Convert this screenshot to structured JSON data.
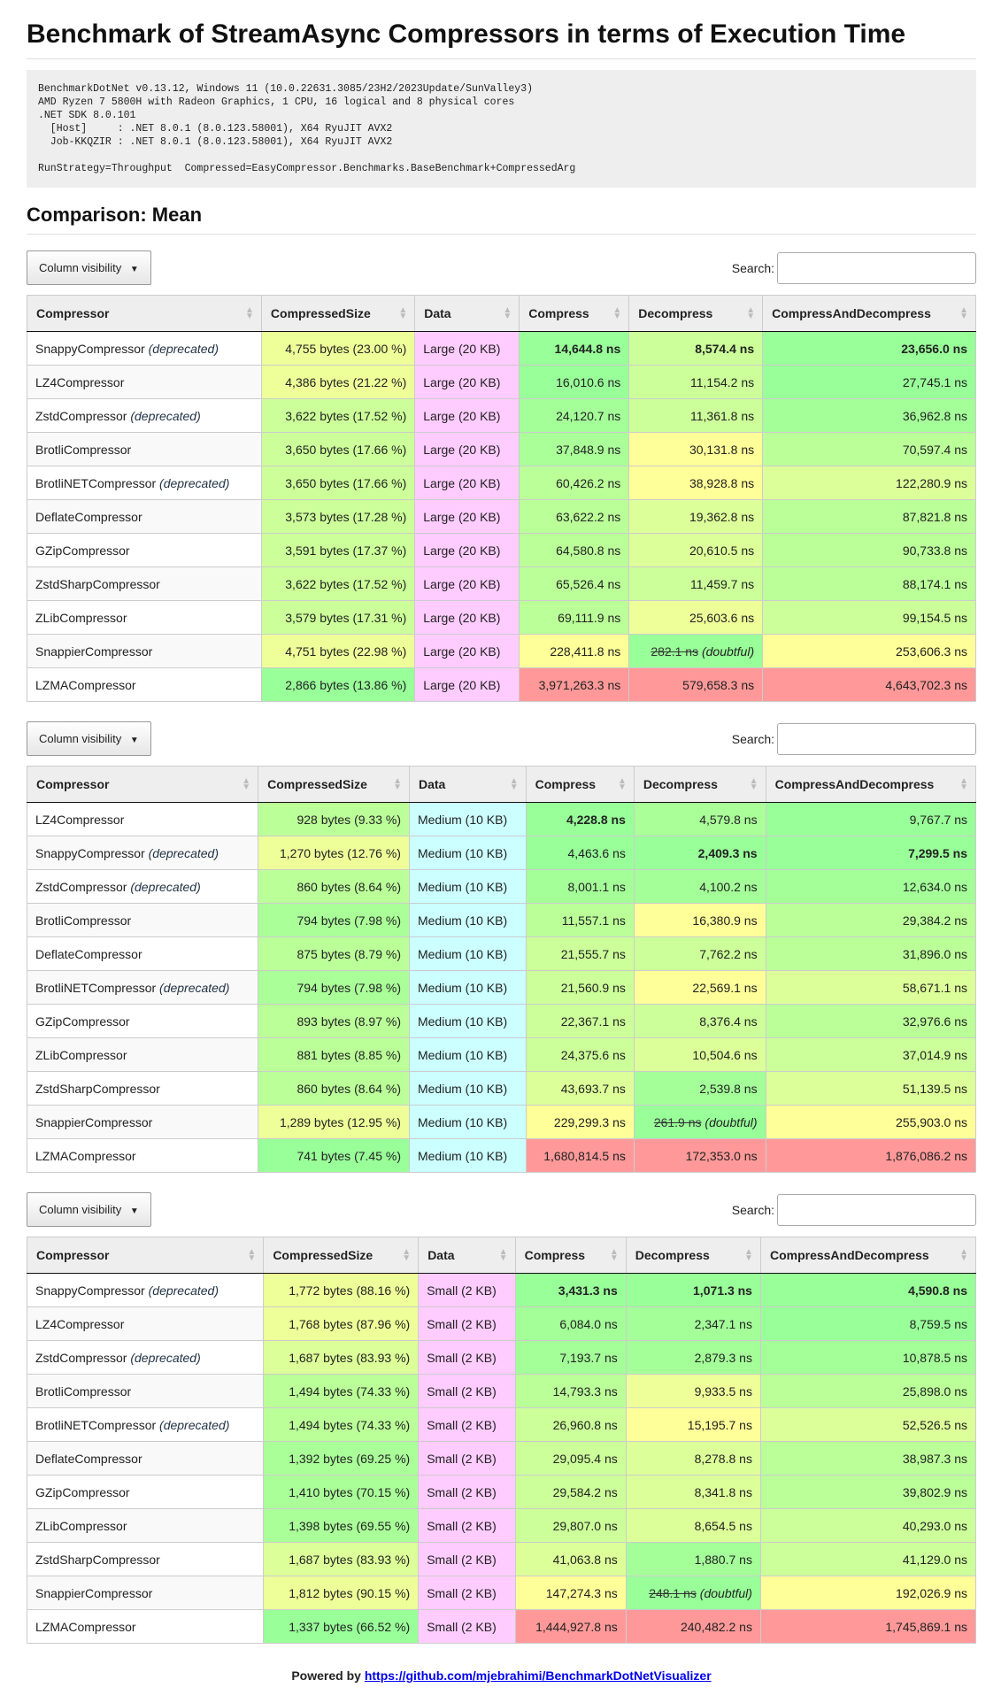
{
  "title": "Benchmark of StreamAsync Compressors in terms of Execution Time",
  "env": "BenchmarkDotNet v0.13.12, Windows 11 (10.0.22631.3085/23H2/2023Update/SunValley3)\nAMD Ryzen 7 5800H with Radeon Graphics, 1 CPU, 16 logical and 8 physical cores\n.NET SDK 8.0.101\n  [Host]     : .NET 8.0.1 (8.0.123.58001), X64 RyuJIT AVX2\n  Job-KKQZIR : .NET 8.0.1 (8.0.123.58001), X64 RyuJIT AVX2\n\nRunStrategy=Throughput  Compressed=EasyCompressor.Benchmarks.BaseBenchmark+CompressedArg",
  "comparison_title": "Comparison: Mean",
  "column_visibility_label": "Column visibility",
  "search_label": "Search:",
  "columns": [
    "Compressor",
    "CompressedSize",
    "Data",
    "Compress",
    "Decompress",
    "CompressAndDecompress"
  ],
  "deprecated_label": "(deprecated)",
  "doubtful_label": "(doubtful)",
  "colors": {
    "green": "#99ff99",
    "yellow": "#ffff99",
    "red": "#ff9999",
    "large": "#ffccff",
    "medium": "#ccffff",
    "small": "#ffccff"
  },
  "tables": [
    {
      "data_color": "#ffccff",
      "bold": [
        0,
        0,
        0
      ],
      "rows": [
        [
          "SnappyCompressor",
          true,
          "4,755 bytes (23.00 %)",
          "Large (20 KB)",
          "14,644.8 ns",
          "8,574.4 ns",
          "23,656.0 ns",
          [
            "#eeff99",
            "#99ff99",
            "#ccff99",
            "#99ff99"
          ],
          false
        ],
        [
          "LZ4Compressor",
          false,
          "4,386 bytes (21.22 %)",
          "Large (20 KB)",
          "16,010.6 ns",
          "11,154.2 ns",
          "27,745.1 ns",
          [
            "#eeff99",
            "#99ff99",
            "#ccff99",
            "#99ff99"
          ],
          false
        ],
        [
          "ZstdCompressor",
          true,
          "3,622 bytes (17.52 %)",
          "Large (20 KB)",
          "24,120.7 ns",
          "11,361.8 ns",
          "36,962.8 ns",
          [
            "#ccff99",
            "#a4ff99",
            "#ccff99",
            "#a4ff99"
          ],
          false
        ],
        [
          "BrotliCompressor",
          false,
          "3,650 bytes (17.66 %)",
          "Large (20 KB)",
          "37,848.9 ns",
          "30,131.8 ns",
          "70,597.4 ns",
          [
            "#ccff99",
            "#aaff99",
            "#ffff99",
            "#bbff99"
          ],
          false
        ],
        [
          "BrotliNETCompressor",
          true,
          "3,650 bytes (17.66 %)",
          "Large (20 KB)",
          "60,426.2 ns",
          "38,928.8 ns",
          "122,280.9 ns",
          [
            "#ccff99",
            "#bbff99",
            "#ffff99",
            "#ddff99"
          ],
          false
        ],
        [
          "DeflateCompressor",
          false,
          "3,573 bytes (17.28 %)",
          "Large (20 KB)",
          "63,622.2 ns",
          "19,362.8 ns",
          "87,821.8 ns",
          [
            "#ccff99",
            "#bbff99",
            "#ddff99",
            "#bbff99"
          ],
          false
        ],
        [
          "GZipCompressor",
          false,
          "3,591 bytes (17.37 %)",
          "Large (20 KB)",
          "64,580.8 ns",
          "20,610.5 ns",
          "90,733.8 ns",
          [
            "#ccff99",
            "#bbff99",
            "#ddff99",
            "#bbff99"
          ],
          false
        ],
        [
          "ZstdSharpCompressor",
          false,
          "3,622 bytes (17.52 %)",
          "Large (20 KB)",
          "65,526.4 ns",
          "11,459.7 ns",
          "88,174.1 ns",
          [
            "#ccff99",
            "#bbff99",
            "#ccff99",
            "#bbff99"
          ],
          false
        ],
        [
          "ZLibCompressor",
          false,
          "3,579 bytes (17.31 %)",
          "Large (20 KB)",
          "69,111.9 ns",
          "25,603.6 ns",
          "99,154.5 ns",
          [
            "#ccff99",
            "#bbff99",
            "#eeff99",
            "#ccff99"
          ],
          false
        ],
        [
          "SnappierCompressor",
          false,
          "4,751 bytes (22.98 %)",
          "Large (20 KB)",
          "228,411.8 ns",
          "282.1 ns",
          "253,606.3 ns",
          [
            "#eeff99",
            "#ffff99",
            "#99ff99",
            "#ffff99"
          ],
          true
        ],
        [
          "LZMACompressor",
          false,
          "2,866 bytes (13.86 %)",
          "Large (20 KB)",
          "3,971,263.3 ns",
          "579,658.3 ns",
          "4,643,702.3 ns",
          [
            "#99ff99",
            "#ff9999",
            "#ff9999",
            "#ff9999"
          ],
          false
        ]
      ]
    },
    {
      "data_color": "#ccffff",
      "bold": [
        0,
        1,
        1
      ],
      "rows": [
        [
          "LZ4Compressor",
          false,
          "928 bytes (9.33 %)",
          "Medium (10 KB)",
          "4,228.8 ns",
          "4,579.8 ns",
          "9,767.7 ns",
          [
            "#bbff99",
            "#99ff99",
            "#aaff99",
            "#99ff99"
          ],
          false
        ],
        [
          "SnappyCompressor",
          true,
          "1,270 bytes (12.76 %)",
          "Medium (10 KB)",
          "4,463.6 ns",
          "2,409.3 ns",
          "7,299.5 ns",
          [
            "#eeff99",
            "#99ff99",
            "#99ff99",
            "#99ff99"
          ],
          false
        ],
        [
          "ZstdCompressor",
          true,
          "860 bytes (8.64 %)",
          "Medium (10 KB)",
          "8,001.1 ns",
          "4,100.2 ns",
          "12,634.0 ns",
          [
            "#bbff99",
            "#a4ff99",
            "#a4ff99",
            "#a4ff99"
          ],
          false
        ],
        [
          "BrotliCompressor",
          false,
          "794 bytes (7.98 %)",
          "Medium (10 KB)",
          "11,557.1 ns",
          "16,380.9 ns",
          "29,384.2 ns",
          [
            "#aaff99",
            "#bbff99",
            "#ffff99",
            "#bbff99"
          ],
          false
        ],
        [
          "DeflateCompressor",
          false,
          "875 bytes (8.79 %)",
          "Medium (10 KB)",
          "21,555.7 ns",
          "7,762.2 ns",
          "31,896.0 ns",
          [
            "#bbff99",
            "#ccff99",
            "#ccff99",
            "#bbff99"
          ],
          false
        ],
        [
          "BrotliNETCompressor",
          true,
          "794 bytes (7.98 %)",
          "Medium (10 KB)",
          "21,560.9 ns",
          "22,569.1 ns",
          "58,671.1 ns",
          [
            "#aaff99",
            "#ccff99",
            "#ffff99",
            "#ddff99"
          ],
          false
        ],
        [
          "GZipCompressor",
          false,
          "893 bytes (8.97 %)",
          "Medium (10 KB)",
          "22,367.1 ns",
          "8,376.4 ns",
          "32,976.6 ns",
          [
            "#bbff99",
            "#ccff99",
            "#ccff99",
            "#bbff99"
          ],
          false
        ],
        [
          "ZLibCompressor",
          false,
          "881 bytes (8.85 %)",
          "Medium (10 KB)",
          "24,375.6 ns",
          "10,504.6 ns",
          "37,014.9 ns",
          [
            "#bbff99",
            "#ccff99",
            "#ddff99",
            "#ccff99"
          ],
          false
        ],
        [
          "ZstdSharpCompressor",
          false,
          "860 bytes (8.64 %)",
          "Medium (10 KB)",
          "43,693.7 ns",
          "2,539.8 ns",
          "51,139.5 ns",
          [
            "#bbff99",
            "#ddff99",
            "#a4ff99",
            "#ddff99"
          ],
          false
        ],
        [
          "SnappierCompressor",
          false,
          "1,289 bytes (12.95 %)",
          "Medium (10 KB)",
          "229,299.3 ns",
          "261.9 ns",
          "255,903.0 ns",
          [
            "#eeff99",
            "#ffff99",
            "#99ff99",
            "#ffff99"
          ],
          true
        ],
        [
          "LZMACompressor",
          false,
          "741 bytes (7.45 %)",
          "Medium (10 KB)",
          "1,680,814.5 ns",
          "172,353.0 ns",
          "1,876,086.2 ns",
          [
            "#99ff99",
            "#ff9999",
            "#ff9999",
            "#ff9999"
          ],
          false
        ]
      ]
    },
    {
      "data_color": "#ffccff",
      "bold": [
        0,
        0,
        0
      ],
      "rows": [
        [
          "SnappyCompressor",
          true,
          "1,772 bytes (88.16 %)",
          "Small (2 KB)",
          "3,431.3 ns",
          "1,071.3 ns",
          "4,590.8 ns",
          [
            "#eeff99",
            "#99ff99",
            "#99ff99",
            "#99ff99"
          ],
          false
        ],
        [
          "LZ4Compressor",
          false,
          "1,768 bytes (87.96 %)",
          "Small (2 KB)",
          "6,084.0 ns",
          "2,347.1 ns",
          "8,759.5 ns",
          [
            "#eeff99",
            "#a4ff99",
            "#a4ff99",
            "#99ff99"
          ],
          false
        ],
        [
          "ZstdCompressor",
          true,
          "1,687 bytes (83.93 %)",
          "Small (2 KB)",
          "7,193.7 ns",
          "2,879.3 ns",
          "10,878.5 ns",
          [
            "#ddff99",
            "#a4ff99",
            "#a4ff99",
            "#a4ff99"
          ],
          false
        ],
        [
          "BrotliCompressor",
          false,
          "1,494 bytes (74.33 %)",
          "Small (2 KB)",
          "14,793.3 ns",
          "9,933.5 ns",
          "25,898.0 ns",
          [
            "#bbff99",
            "#bbff99",
            "#eeff99",
            "#bbff99"
          ],
          false
        ],
        [
          "BrotliNETCompressor",
          true,
          "1,494 bytes (74.33 %)",
          "Small (2 KB)",
          "26,960.8 ns",
          "15,195.7 ns",
          "52,526.5 ns",
          [
            "#bbff99",
            "#ccff99",
            "#ffff99",
            "#ddff99"
          ],
          false
        ],
        [
          "DeflateCompressor",
          false,
          "1,392 bytes (69.25 %)",
          "Small (2 KB)",
          "29,095.4 ns",
          "8,278.8 ns",
          "38,987.3 ns",
          [
            "#aaff99",
            "#ccff99",
            "#ddff99",
            "#bbff99"
          ],
          false
        ],
        [
          "GZipCompressor",
          false,
          "1,410 bytes (70.15 %)",
          "Small (2 KB)",
          "29,584.2 ns",
          "8,341.8 ns",
          "39,802.9 ns",
          [
            "#aaff99",
            "#ccff99",
            "#ddff99",
            "#bbff99"
          ],
          false
        ],
        [
          "ZLibCompressor",
          false,
          "1,398 bytes (69.55 %)",
          "Small (2 KB)",
          "29,807.0 ns",
          "8,654.5 ns",
          "40,293.0 ns",
          [
            "#aaff99",
            "#ccff99",
            "#ddff99",
            "#ccff99"
          ],
          false
        ],
        [
          "ZstdSharpCompressor",
          false,
          "1,687 bytes (83.93 %)",
          "Small (2 KB)",
          "41,063.8 ns",
          "1,880.7 ns",
          "41,129.0 ns",
          [
            "#ddff99",
            "#ddff99",
            "#a4ff99",
            "#ccff99"
          ],
          false
        ],
        [
          "SnappierCompressor",
          false,
          "1,812 bytes (90.15 %)",
          "Small (2 KB)",
          "147,274.3 ns",
          "248.1 ns",
          "192,026.9 ns",
          [
            "#eeff99",
            "#ffff99",
            "#99ff99",
            "#ffff99"
          ],
          true
        ],
        [
          "LZMACompressor",
          false,
          "1,337 bytes (66.52 %)",
          "Small (2 KB)",
          "1,444,927.8 ns",
          "240,482.2 ns",
          "1,745,869.1 ns",
          [
            "#99ff99",
            "#ff9999",
            "#ff9999",
            "#ff9999"
          ],
          false
        ]
      ]
    }
  ],
  "footer": {
    "prefix": "Powered by",
    "link": "https://github.com/mjebrahimi/BenchmarkDotNetVisualizer"
  }
}
